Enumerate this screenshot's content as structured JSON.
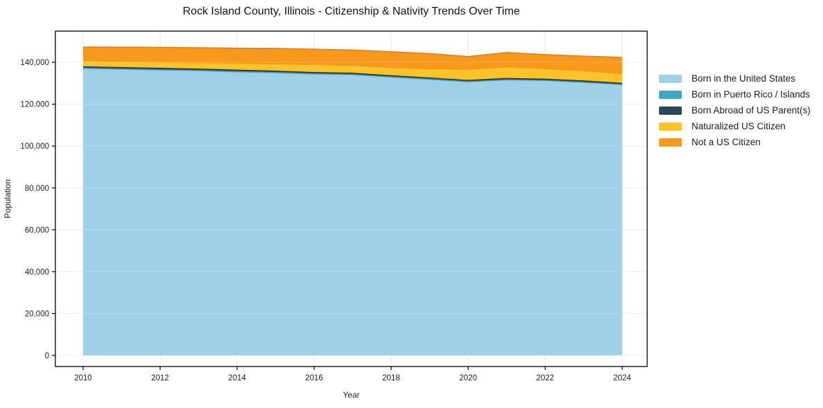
{
  "title": "Rock Island County, Illinois - Citizenship & Nativity Trends Over Time",
  "colors": {
    "background": "#ffffff",
    "grid": "#e9e9e9",
    "spine": "#000000",
    "tick_text": "#1a1a1a",
    "title_text": "#111111"
  },
  "chart_data": {
    "type": "area",
    "stacked": true,
    "title": "Rock Island County, Illinois - Citizenship & Nativity Trends Over Time",
    "xlabel": "Year",
    "ylabel": "Population",
    "grid": true,
    "legend_position": "right",
    "x": [
      2010,
      2011,
      2012,
      2013,
      2014,
      2015,
      2016,
      2017,
      2018,
      2019,
      2020,
      2021,
      2022,
      2023,
      2024
    ],
    "series": [
      {
        "name": "Born in the United States",
        "color": "#a0d0e8",
        "edge": "#8ac2de",
        "values": [
          137000,
          136600,
          136200,
          135900,
          135300,
          134900,
          134300,
          134000,
          132800,
          131700,
          130600,
          131500,
          131200,
          130300,
          129200
        ]
      },
      {
        "name": "Born in Puerto Rico / Islands",
        "color": "#3fa7c0",
        "edge": "#338ba0",
        "values": [
          500,
          480,
          500,
          480,
          520,
          500,
          450,
          400,
          450,
          500,
          420,
          400,
          380,
          400,
          420
        ]
      },
      {
        "name": "Born Abroad of US Parent(s)",
        "color": "#27495c",
        "edge": "#1c3644",
        "values": [
          600,
          650,
          700,
          650,
          700,
          650,
          600,
          650,
          600,
          550,
          600,
          650,
          600,
          650,
          600
        ]
      },
      {
        "name": "Naturalized US Citizen",
        "color": "#fcc32d",
        "edge": "#e3a90f",
        "values": [
          2600,
          2700,
          2700,
          2800,
          3000,
          3200,
          3600,
          3500,
          3600,
          4200,
          5000,
          5300,
          4800,
          4600,
          4400
        ]
      },
      {
        "name": "Not a US Citizen",
        "color": "#f8981d",
        "edge": "#e0830e",
        "values": [
          6600,
          6800,
          7000,
          7100,
          7200,
          7400,
          7300,
          7300,
          7600,
          7200,
          6100,
          6800,
          6700,
          7000,
          7700
        ]
      }
    ],
    "xticks": [
      2010,
      2012,
      2014,
      2016,
      2018,
      2020,
      2022,
      2024
    ],
    "xtick_labels": [
      "2010",
      "2012",
      "2014",
      "2016",
      "2018",
      "2020",
      "2022",
      "2024"
    ],
    "yticks": [
      0,
      20000,
      40000,
      60000,
      80000,
      100000,
      120000,
      140000
    ],
    "ytick_labels": [
      "0",
      "20,000",
      "40,000",
      "60,000",
      "80,000",
      "100,000",
      "120,000",
      "140,000"
    ],
    "xlim": [
      2009.28,
      2024.65
    ],
    "ylim": [
      -5300,
      154900
    ]
  }
}
